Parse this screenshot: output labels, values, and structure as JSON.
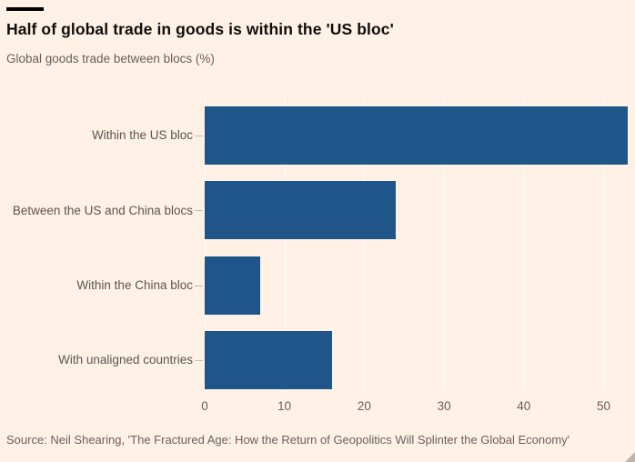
{
  "page": {
    "background_color": "#FFF1E5"
  },
  "header": {
    "title": "Half of global trade in goods is within the 'US bloc'",
    "subtitle": "Global goods trade between blocs (%)"
  },
  "chart_data": {
    "type": "bar",
    "orientation": "horizontal",
    "title": "Half of global trade in goods is within the 'US bloc'",
    "subtitle": "Global goods trade between blocs (%)",
    "categories": [
      "Within the US bloc",
      "Between the US and China blocs",
      "Within the China bloc",
      "With unaligned countries"
    ],
    "values": [
      53,
      24,
      7,
      16
    ],
    "unit": "%",
    "xlabel": "",
    "ylabel": "",
    "xlim": [
      0,
      53.5
    ],
    "x_ticks": [
      0,
      10,
      20,
      30,
      40,
      50
    ],
    "grid": true,
    "legend": false,
    "bar_color": "#20558A",
    "background_color": "#FFF1E5"
  },
  "footer": {
    "source": "Source: Neil Shearing, 'The Fractured Age: How the Return of Geopolitics Will Splinter the Global Economy'"
  }
}
